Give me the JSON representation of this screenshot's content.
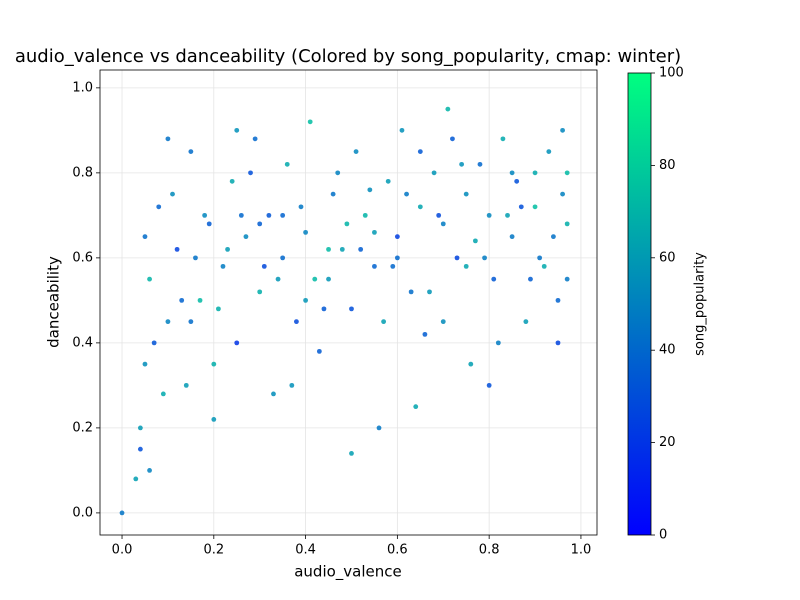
{
  "chart_data": {
    "type": "scatter",
    "title": "audio_valence vs danceability (Colored by song_popularity, cmap: winter)",
    "x_label": "audio_valence",
    "y_label": "danceability",
    "colorbar_label": "song_popularity",
    "cmap": "winter",
    "grid": true,
    "xlim": [
      -0.048,
      1.035
    ],
    "ylim": [
      -0.052,
      1.042
    ],
    "clim": [
      0,
      100
    ],
    "xticks": [
      {
        "value": 0,
        "label": "0.0"
      },
      0.2,
      0.4,
      0.6,
      0.8,
      {
        "value": 1,
        "label": "1.0"
      }
    ],
    "yticks": [
      {
        "value": 0,
        "label": "0.0"
      },
      0.2,
      0.4,
      0.6,
      0.8,
      {
        "value": 1,
        "label": "1.0"
      }
    ],
    "cticks": [
      0,
      20,
      40,
      60,
      80,
      100
    ],
    "x": [
      0.0,
      0.03,
      0.04,
      0.05,
      0.06,
      0.08,
      0.1,
      0.12,
      0.14,
      0.15,
      0.17,
      0.19,
      0.2,
      0.22,
      0.24,
      0.25,
      0.27,
      0.29,
      0.3,
      0.32,
      0.33,
      0.35,
      0.36,
      0.38,
      0.4,
      0.41,
      0.43,
      0.45,
      0.46,
      0.48,
      0.5,
      0.51,
      0.53,
      0.55,
      0.56,
      0.58,
      0.6,
      0.61,
      0.63,
      0.65,
      0.66,
      0.68,
      0.7,
      0.71,
      0.73,
      0.75,
      0.76,
      0.78,
      0.8,
      0.81,
      0.83,
      0.85,
      0.86,
      0.88,
      0.9,
      0.91,
      0.93,
      0.95,
      0.96,
      0.97,
      0.04,
      0.07,
      0.11,
      0.16,
      0.21,
      0.26,
      0.31,
      0.37,
      0.42,
      0.47,
      0.52,
      0.57,
      0.62,
      0.67,
      0.72,
      0.77,
      0.82,
      0.87,
      0.92,
      0.96,
      0.05,
      0.09,
      0.13,
      0.18,
      0.23,
      0.28,
      0.34,
      0.39,
      0.44,
      0.49,
      0.54,
      0.59,
      0.64,
      0.69,
      0.74,
      0.79,
      0.84,
      0.89,
      0.94,
      0.97,
      0.06,
      0.1,
      0.2,
      0.3,
      0.4,
      0.5,
      0.6,
      0.7,
      0.8,
      0.9,
      0.97,
      0.45,
      0.35,
      0.25,
      0.15,
      0.55,
      0.65,
      0.75,
      0.85,
      0.95
    ],
    "values": [
      0.0,
      0.08,
      0.15,
      0.35,
      0.55,
      0.72,
      0.45,
      0.62,
      0.3,
      0.85,
      0.5,
      0.68,
      0.22,
      0.58,
      0.78,
      0.4,
      0.65,
      0.88,
      0.52,
      0.7,
      0.28,
      0.6,
      0.82,
      0.45,
      0.66,
      0.92,
      0.38,
      0.55,
      0.75,
      0.62,
      0.48,
      0.85,
      0.7,
      0.58,
      0.2,
      0.78,
      0.65,
      0.9,
      0.52,
      0.72,
      0.42,
      0.8,
      0.68,
      0.95,
      0.6,
      0.75,
      0.35,
      0.82,
      0.7,
      0.55,
      0.88,
      0.65,
      0.78,
      0.45,
      0.72,
      0.6,
      0.85,
      0.5,
      0.75,
      0.68,
      0.2,
      0.4,
      0.75,
      0.6,
      0.48,
      0.7,
      0.58,
      0.3,
      0.55,
      0.8,
      0.62,
      0.45,
      0.75,
      0.52,
      0.88,
      0.64,
      0.4,
      0.72,
      0.58,
      0.9,
      0.65,
      0.28,
      0.5,
      0.7,
      0.62,
      0.8,
      0.55,
      0.72,
      0.48,
      0.68,
      0.76,
      0.58,
      0.25,
      0.7,
      0.82,
      0.6,
      0.7,
      0.55,
      0.65,
      0.8,
      0.1,
      0.88,
      0.35,
      0.68,
      0.5,
      0.14,
      0.6,
      0.45,
      0.3,
      0.8,
      0.55,
      0.62,
      0.7,
      0.9,
      0.45,
      0.66,
      0.85,
      0.58,
      0.8,
      0.4
    ],
    "popularity": [
      45,
      62,
      30,
      55,
      70,
      38,
      50,
      25,
      60,
      42,
      72,
      35,
      58,
      48,
      65,
      20,
      52,
      40,
      68,
      33,
      55,
      40,
      66,
      28,
      50,
      74,
      35,
      58,
      44,
      62,
      30,
      52,
      70,
      38,
      46,
      60,
      24,
      56,
      42,
      64,
      36,
      58,
      48,
      70,
      26,
      54,
      62,
      40,
      52,
      34,
      66,
      46,
      30,
      60,
      74,
      44,
      56,
      38,
      50,
      68,
      60,
      32,
      54,
      44,
      68,
      40,
      28,
      56,
      72,
      50,
      36,
      62,
      46,
      58,
      34,
      64,
      48,
      30,
      66,
      52,
      42,
      66,
      38,
      52,
      60,
      30,
      58,
      46,
      34,
      70,
      54,
      40,
      64,
      28,
      56,
      48,
      62,
      36,
      44,
      72,
      50,
      44,
      68,
      36,
      58,
      62,
      40,
      54,
      30,
      66,
      46,
      72,
      38,
      56,
      42,
      60,
      34,
      64,
      52,
      26
    ]
  }
}
